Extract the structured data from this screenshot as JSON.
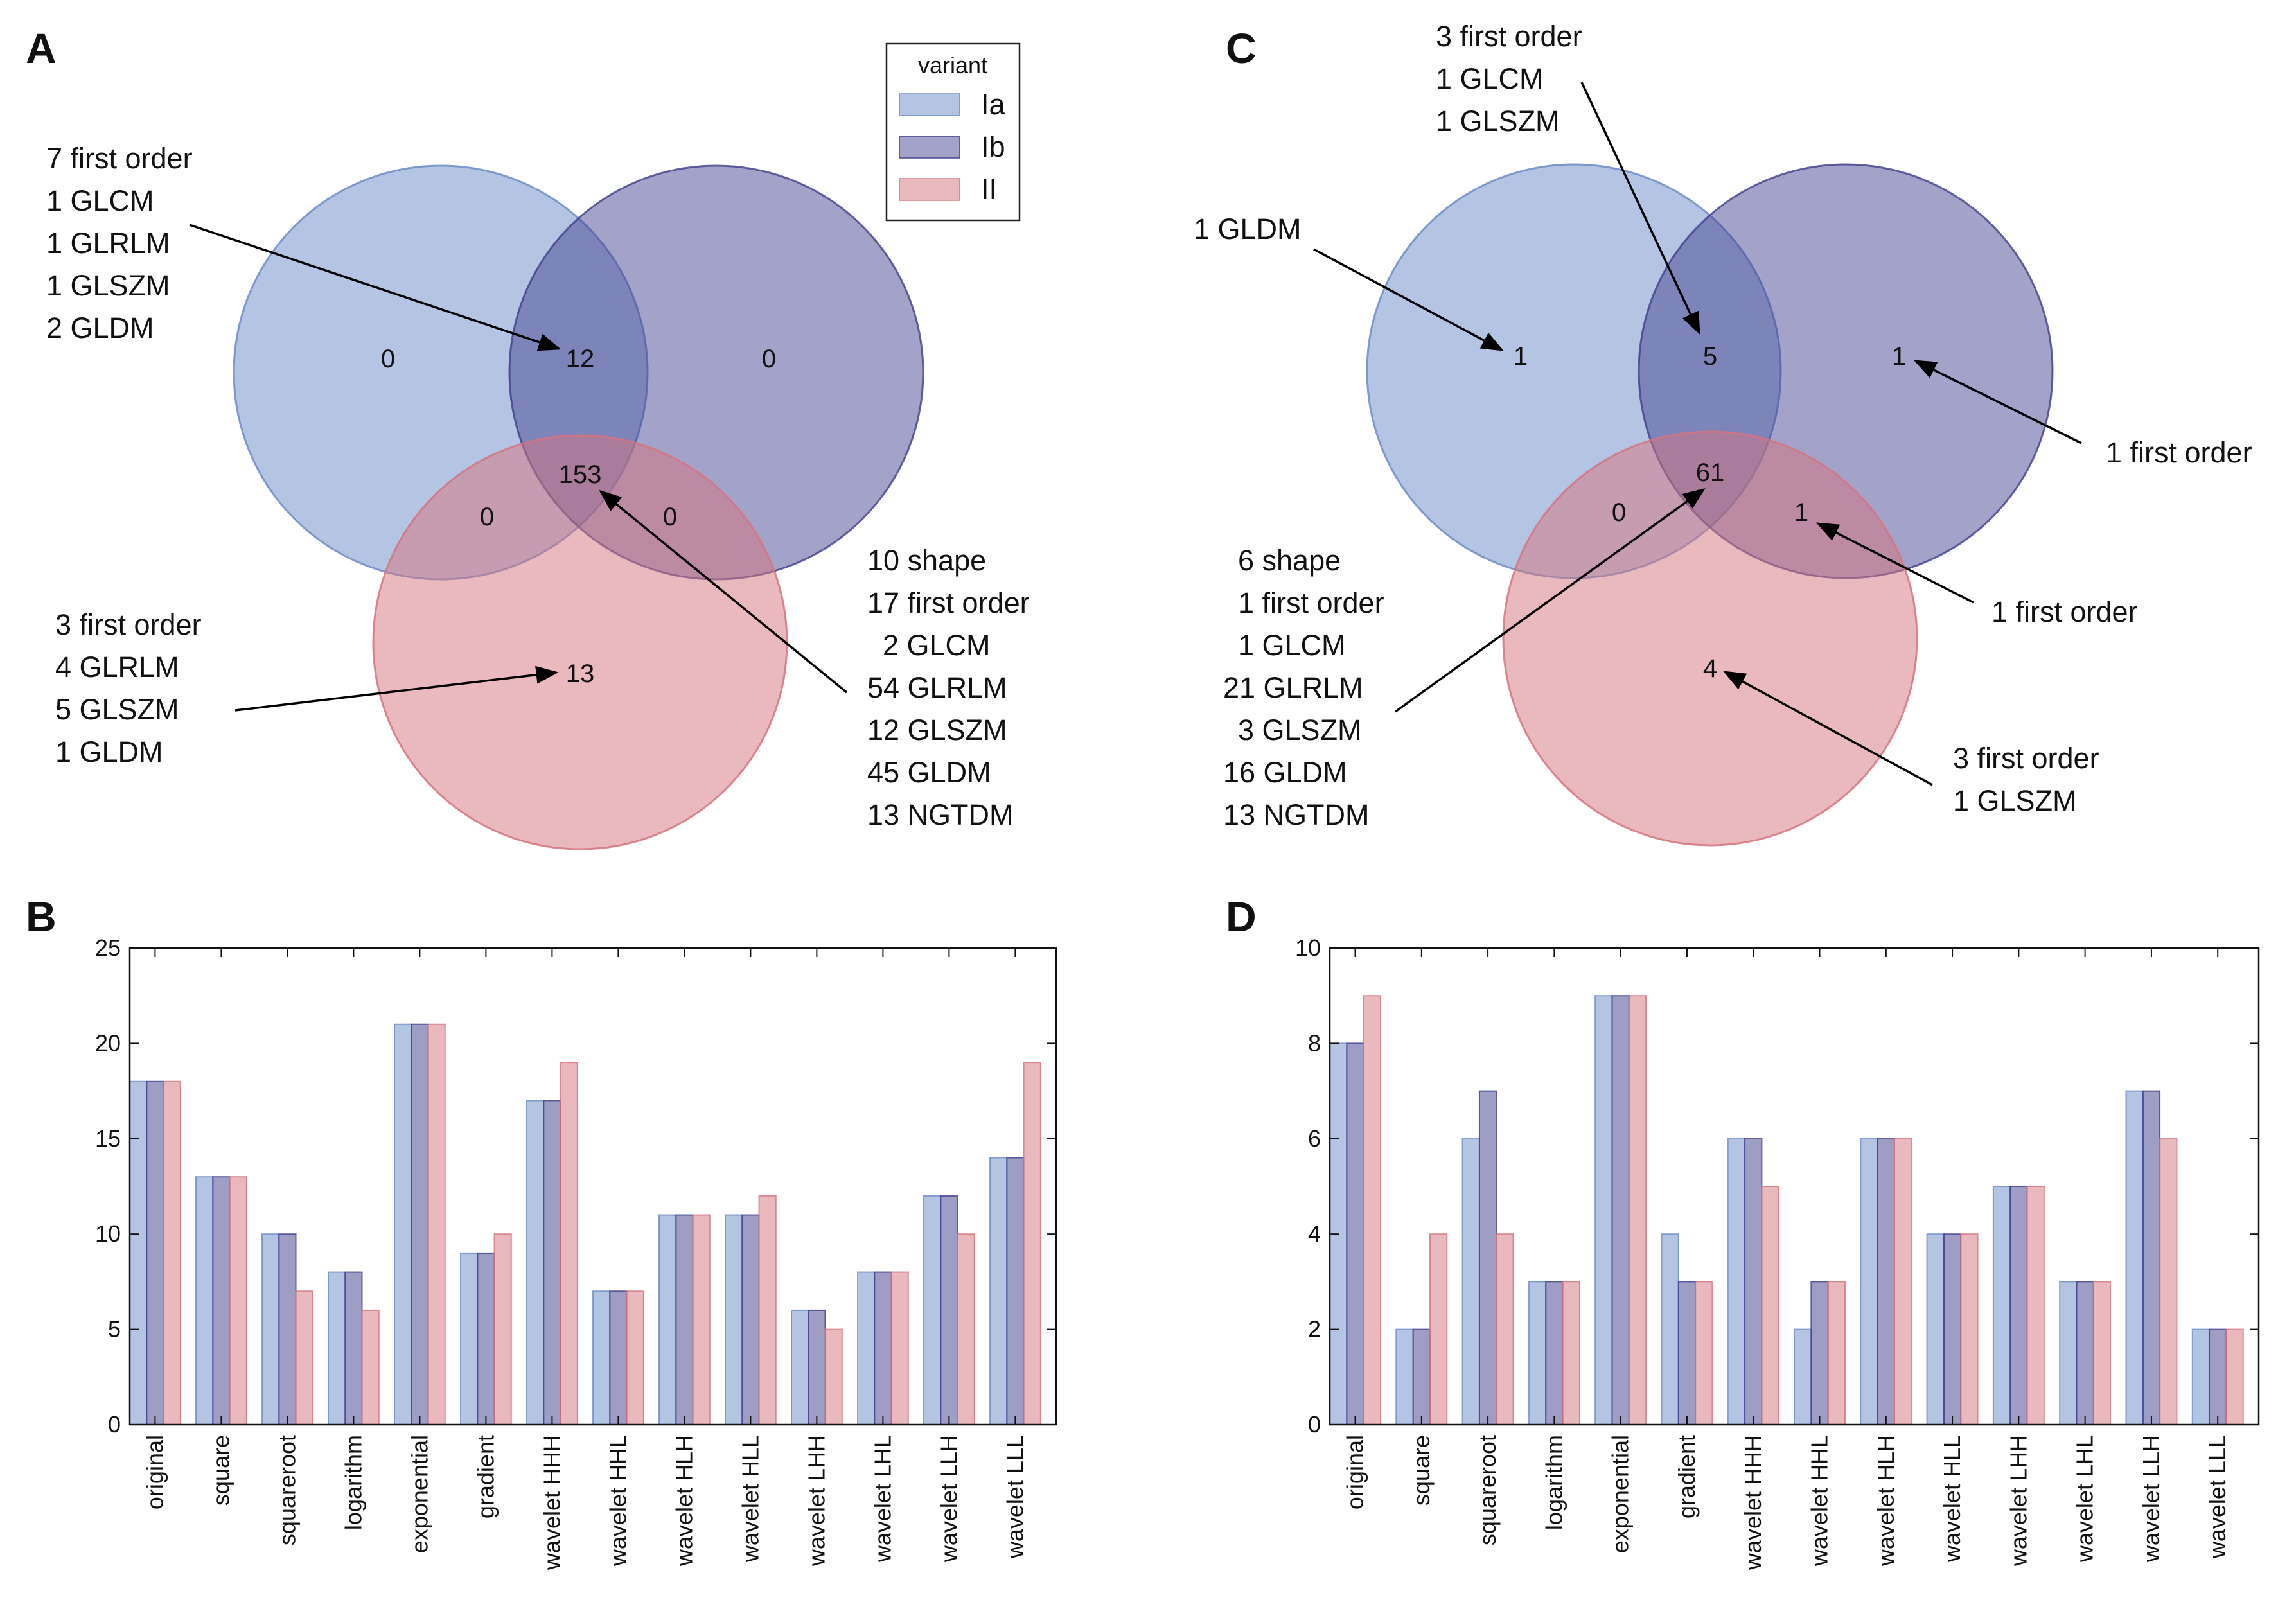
{
  "colors": {
    "Ia": "#6a8cc7",
    "Ib": "#3e3d8c",
    "II": "#d5737e"
  },
  "legend": {
    "title": "variant",
    "items": [
      "Ia",
      "Ib",
      "II"
    ]
  },
  "panels": {
    "A": "A",
    "B": "B",
    "C": "C",
    "D": "D"
  },
  "venns": [
    {
      "panel": "A",
      "regions": {
        "ia_only": "0",
        "ib_only": "0",
        "ia_ib": "12",
        "ia_ii": "0",
        "ib_ii": "0",
        "all": "153",
        "ii_only": "13"
      },
      "annotations": [
        [
          "7 first order",
          "1 GLCM",
          "1 GLRLM",
          "1 GLSZM",
          "2 GLDM"
        ],
        [
          "3 first order",
          "4 GLRLM",
          "5 GLSZM",
          "1 GLDM"
        ],
        [
          "10 shape",
          "17 first order",
          "2 GLCM",
          "54 GLRLM",
          "12 GLSZM",
          "45 GLDM",
          "13 NGTDM"
        ]
      ]
    },
    {
      "panel": "C",
      "regions": {
        "ia_only": "1",
        "ib_only": "1",
        "ia_ib": "5",
        "ia_ii": "0",
        "ib_ii": "1",
        "all": "61",
        "ii_only": "4"
      },
      "annotations": [
        [
          "3 first order",
          "1 GLCM",
          "1 GLSZM"
        ],
        [
          "1 GLDM"
        ],
        [
          "1 first order"
        ],
        [
          "1 first order"
        ],
        [
          "6 shape",
          "1 first order",
          "1 GLCM",
          "21 GLRLM",
          "3 GLSZM",
          "16 GLDM",
          "13 NGTDM"
        ],
        [
          "3 first order",
          "1 GLSZM"
        ]
      ]
    }
  ],
  "chart_data": [
    {
      "panel": "B",
      "type": "bar",
      "categories": [
        "original",
        "square",
        "squareroot",
        "logarithm",
        "exponential",
        "gradient",
        "wavelet HHH",
        "wavelet HHL",
        "wavelet HLH",
        "wavelet HLL",
        "wavelet LHH",
        "wavelet LHL",
        "wavelet LLH",
        "wavelet LLL"
      ],
      "series": [
        {
          "name": "Ia",
          "values": [
            18,
            13,
            10,
            8,
            21,
            9,
            17,
            7,
            11,
            11,
            6,
            8,
            12,
            14
          ]
        },
        {
          "name": "Ib",
          "values": [
            18,
            13,
            10,
            8,
            21,
            9,
            17,
            7,
            11,
            11,
            6,
            8,
            12,
            14
          ]
        },
        {
          "name": "II",
          "values": [
            18,
            13,
            7,
            6,
            21,
            10,
            19,
            7,
            11,
            12,
            5,
            8,
            10,
            19
          ]
        }
      ],
      "ylim": [
        0,
        25
      ],
      "yticks": [
        "0",
        "5",
        "10",
        "15",
        "20",
        "25"
      ],
      "title": "",
      "xlabel": "",
      "ylabel": ""
    },
    {
      "panel": "D",
      "type": "bar",
      "categories": [
        "original",
        "square",
        "squareroot",
        "logarithm",
        "exponential",
        "gradient",
        "wavelet HHH",
        "wavelet HHL",
        "wavelet HLH",
        "wavelet HLL",
        "wavelet LHH",
        "wavelet LHL",
        "wavelet LLH",
        "wavelet LLL"
      ],
      "series": [
        {
          "name": "Ia",
          "values": [
            8,
            2,
            6,
            3,
            9,
            4,
            6,
            2,
            6,
            4,
            5,
            3,
            7,
            2
          ]
        },
        {
          "name": "Ib",
          "values": [
            8,
            2,
            7,
            3,
            9,
            3,
            6,
            3,
            6,
            4,
            5,
            3,
            7,
            2
          ]
        },
        {
          "name": "II",
          "values": [
            9,
            4,
            4,
            3,
            9,
            3,
            5,
            3,
            6,
            4,
            5,
            3,
            6,
            2
          ]
        }
      ],
      "ylim": [
        0,
        10
      ],
      "yticks": [
        "0",
        "2",
        "4",
        "6",
        "8",
        "10"
      ],
      "title": "",
      "xlabel": "",
      "ylabel": ""
    }
  ]
}
